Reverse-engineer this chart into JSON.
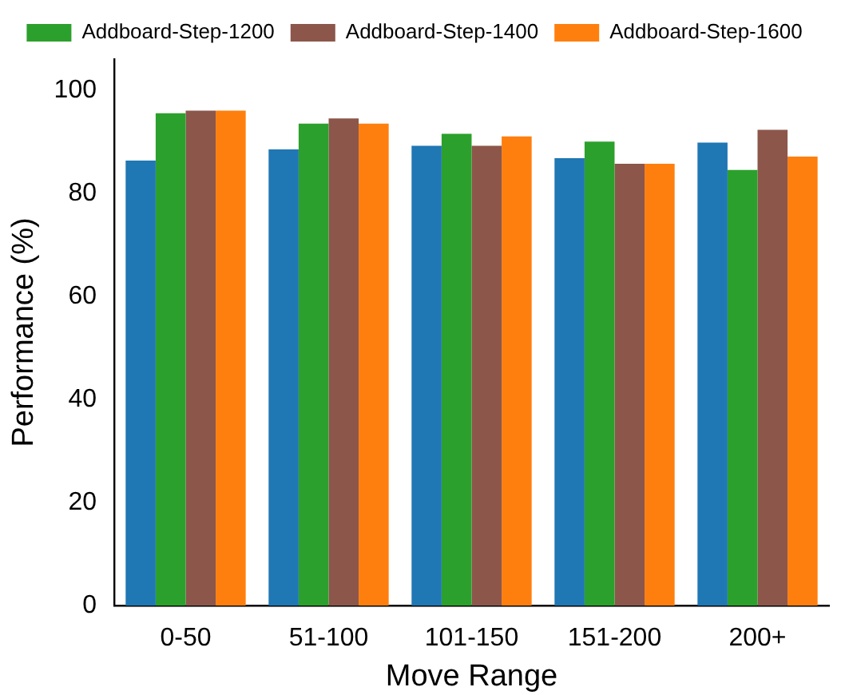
{
  "chart_data": {
    "type": "bar",
    "xlabel": "Move Range",
    "ylabel": "Performance (%)",
    "categories": [
      "0-50",
      "51-100",
      "101-150",
      "151-200",
      "200+"
    ],
    "series": [
      {
        "color": "#1f77b4",
        "values": [
          86.3,
          88.5,
          89.2,
          86.8,
          89.8
        ]
      },
      {
        "name": "Addboard-Step-1200",
        "color": "#2ca02c",
        "values": [
          95.5,
          93.5,
          91.5,
          90,
          84.5
        ]
      },
      {
        "name": "Addboard-Step-1400",
        "color": "#8c564b",
        "values": [
          96,
          94.5,
          89.2,
          85.7,
          92.3
        ]
      },
      {
        "name": "Addboard-Step-1600",
        "color": "#ff7f0e",
        "values": [
          96,
          93.5,
          91,
          85.7,
          87.1
        ]
      }
    ],
    "ylim": [
      0,
      106
    ],
    "yticks": [
      0,
      20,
      40,
      60,
      80,
      100
    ],
    "grid": false,
    "legend": "top"
  }
}
